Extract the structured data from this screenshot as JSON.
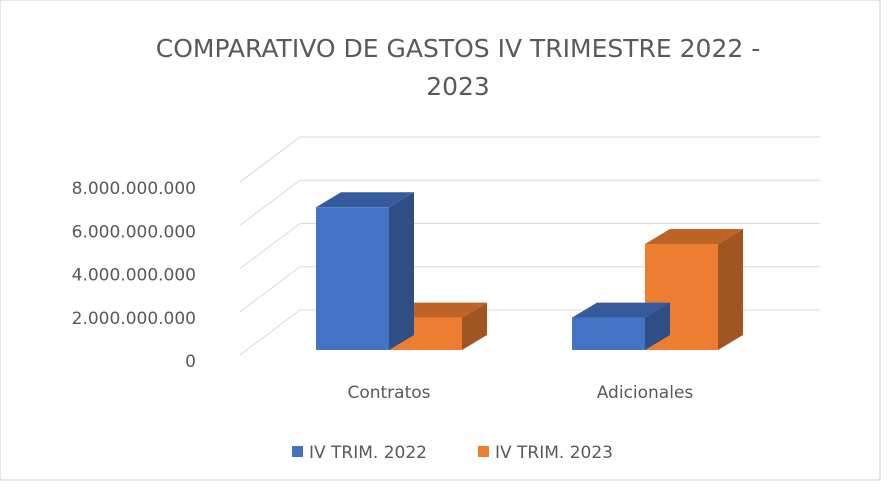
{
  "chart_data": {
    "type": "bar3d",
    "title": "COMPARATIVO DE GASTOS IV TRIMESTRE 2022 - 2023",
    "categories": [
      "Contratos",
      "Adicionales"
    ],
    "series": [
      {
        "name": "IV TRIM. 2022",
        "color": "#4472c4",
        "values": [
          6600000000,
          1500000000
        ]
      },
      {
        "name": "IV TRIM. 2023",
        "color": "#ed7d31",
        "values": [
          1500000000,
          4900000000
        ]
      }
    ],
    "ylim": [
      0,
      8000000000
    ],
    "yticks": [
      0,
      {
        "value": 2000000000,
        "label": "2.000.000.000"
      },
      {
        "value": 4000000000,
        "label": "4.000.000.000"
      },
      {
        "value": 6000000000,
        "label": "6.000.000.000"
      },
      {
        "value": 8000000000,
        "label": "8.000.000.000"
      }
    ],
    "grid": true,
    "legend": "bottom"
  }
}
